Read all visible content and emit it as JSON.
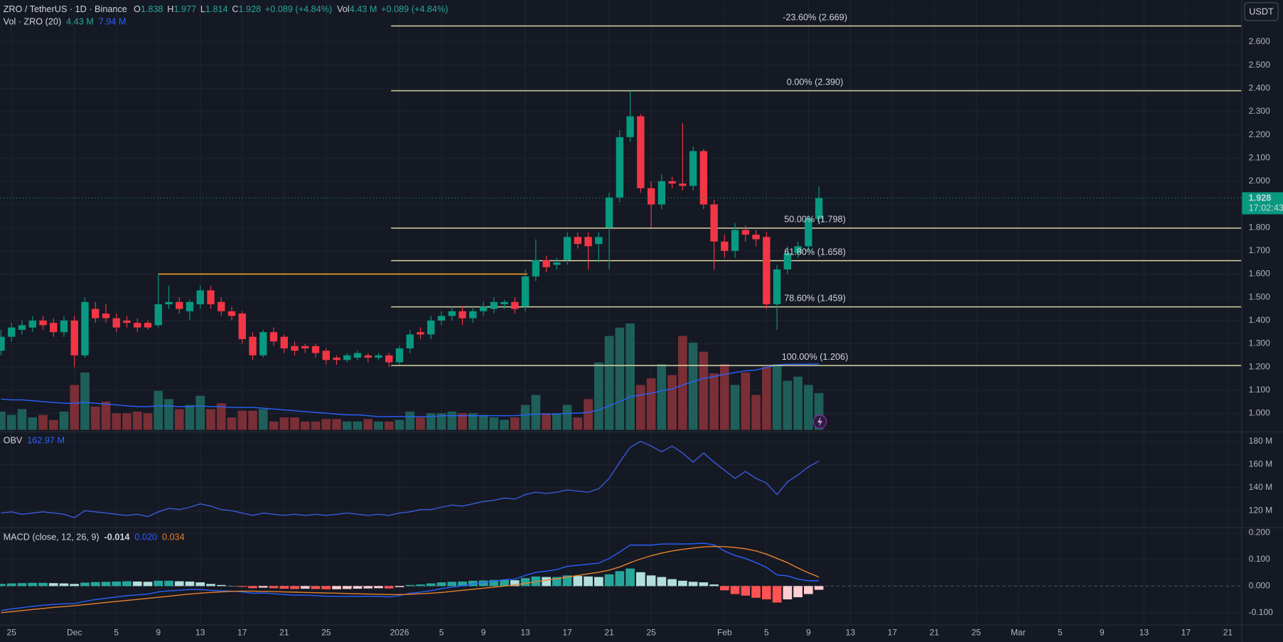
{
  "chart_data": {
    "type": "candlestick",
    "title": "ZRO / TetherUS · 1D · Binance",
    "header_keys": [
      "O",
      "H",
      "L",
      "C"
    ],
    "change": "+0.089 (+4.84%)",
    "vol_key": "Vol",
    "quote": "USDT",
    "countdown": "17:02:43",
    "up_color": "#089981",
    "down_color": "#f23645",
    "xlim": [
      -0.1,
      118.2
    ],
    "xticks": [
      {
        "value": 1,
        "label": "25"
      },
      {
        "value": 7,
        "label": "Dec"
      },
      {
        "value": 11,
        "label": "5"
      },
      {
        "value": 15,
        "label": "9"
      },
      {
        "value": 19,
        "label": "13"
      },
      {
        "value": 23,
        "label": "17"
      },
      {
        "value": 27,
        "label": "21"
      },
      {
        "value": 31,
        "label": "25"
      },
      {
        "value": 38,
        "label": "2026"
      },
      {
        "value": 42,
        "label": "5"
      },
      {
        "value": 46,
        "label": "9"
      },
      {
        "value": 50,
        "label": "13"
      },
      {
        "value": 54,
        "label": "17"
      },
      {
        "value": 58,
        "label": "21"
      },
      {
        "value": 62,
        "label": "25"
      },
      {
        "value": 69,
        "label": "Feb"
      },
      {
        "value": 73,
        "label": "5"
      },
      {
        "value": 77,
        "label": "9"
      },
      {
        "value": 81,
        "label": "13"
      },
      {
        "value": 85,
        "label": "17"
      },
      {
        "value": 89,
        "label": "21"
      },
      {
        "value": 93,
        "label": "25"
      },
      {
        "value": 97,
        "label": "Mar"
      },
      {
        "value": 101,
        "label": "5"
      },
      {
        "value": 105,
        "label": "9"
      },
      {
        "value": 109,
        "label": "13"
      },
      {
        "value": 113,
        "label": "17"
      },
      {
        "value": 117,
        "label": "21"
      }
    ],
    "ylim": [
      0.922,
      2.78
    ],
    "yticks": [
      {
        "value": 1.0,
        "label": "1.000"
      },
      {
        "value": 1.1,
        "label": "1.100"
      },
      {
        "value": 1.2,
        "label": "1.200"
      },
      {
        "value": 1.3,
        "label": "1.300"
      },
      {
        "value": 1.4,
        "label": "1.400"
      },
      {
        "value": 1.5,
        "label": "1.500"
      },
      {
        "value": 1.6,
        "label": "1.600"
      },
      {
        "value": 1.7,
        "label": "1.700"
      },
      {
        "value": 1.8,
        "label": "1.800"
      },
      {
        "value": 1.9,
        "label": "1.900"
      },
      {
        "value": 2.0,
        "label": "2.000"
      },
      {
        "value": 2.1,
        "label": "2.100"
      },
      {
        "value": 2.2,
        "label": "2.200"
      },
      {
        "value": 2.3,
        "label": "2.300"
      },
      {
        "value": 2.4,
        "label": "2.400"
      },
      {
        "value": 2.5,
        "label": "2.500"
      },
      {
        "value": 2.6,
        "label": "2.600"
      }
    ],
    "grid": true,
    "open": [
      1.27,
      1.33,
      1.36,
      1.37,
      1.4,
      1.39,
      1.35,
      1.4,
      1.25,
      1.45,
      1.43,
      1.41,
      1.4,
      1.39,
      1.39,
      1.38,
      1.47,
      1.48,
      1.44,
      1.47,
      1.53,
      1.48,
      1.44,
      1.43,
      1.33,
      1.25,
      1.35,
      1.33,
      1.29,
      1.29,
      1.29,
      1.27,
      1.24,
      1.23,
      1.24,
      1.25,
      1.24,
      1.25,
      1.22,
      1.28,
      1.35,
      1.34,
      1.4,
      1.42,
      1.44,
      1.41,
      1.44,
      1.45,
      1.47,
      1.48,
      1.46,
      1.59,
      1.66,
      1.64,
      1.66,
      1.76,
      1.76,
      1.73,
      1.8,
      1.93,
      2.19,
      2.28,
      1.97,
      1.9,
      2.0,
      1.99,
      1.98,
      2.13,
      1.9,
      1.74,
      1.7,
      1.79,
      1.77,
      1.76,
      1.47,
      1.62,
      1.69,
      1.72,
      1.838
    ],
    "high": [
      1.36,
      1.39,
      1.4,
      1.42,
      1.42,
      1.41,
      1.42,
      1.42,
      1.5,
      1.48,
      1.47,
      1.43,
      1.42,
      1.41,
      1.4,
      1.6,
      1.55,
      1.5,
      1.49,
      1.55,
      1.55,
      1.5,
      1.46,
      1.44,
      1.35,
      1.36,
      1.37,
      1.34,
      1.31,
      1.3,
      1.3,
      1.28,
      1.25,
      1.26,
      1.27,
      1.26,
      1.26,
      1.26,
      1.29,
      1.36,
      1.37,
      1.42,
      1.44,
      1.46,
      1.46,
      1.46,
      1.48,
      1.5,
      1.49,
      1.5,
      1.62,
      1.75,
      1.68,
      1.67,
      1.78,
      1.78,
      1.78,
      1.78,
      1.95,
      2.22,
      2.39,
      2.29,
      2.0,
      2.03,
      2.02,
      2.25,
      2.15,
      2.14,
      1.92,
      1.77,
      1.82,
      1.81,
      1.79,
      1.78,
      1.64,
      1.72,
      1.74,
      1.85,
      1.977
    ],
    "low": [
      1.25,
      1.31,
      1.34,
      1.35,
      1.36,
      1.33,
      1.33,
      1.2,
      1.24,
      1.39,
      1.39,
      1.35,
      1.37,
      1.35,
      1.36,
      1.37,
      1.45,
      1.43,
      1.4,
      1.45,
      1.45,
      1.42,
      1.4,
      1.3,
      1.23,
      1.24,
      1.29,
      1.26,
      1.25,
      1.26,
      1.24,
      1.21,
      1.21,
      1.22,
      1.23,
      1.22,
      1.23,
      1.2,
      1.21,
      1.26,
      1.32,
      1.32,
      1.38,
      1.4,
      1.38,
      1.39,
      1.42,
      1.43,
      1.45,
      1.43,
      1.44,
      1.57,
      1.61,
      1.62,
      1.64,
      1.71,
      1.62,
      1.65,
      1.62,
      1.91,
      2.17,
      1.95,
      1.8,
      1.88,
      1.97,
      1.96,
      1.96,
      1.88,
      1.62,
      1.67,
      1.67,
      1.74,
      1.72,
      1.45,
      1.36,
      1.6,
      1.67,
      1.7,
      1.814
    ],
    "close": [
      1.33,
      1.37,
      1.38,
      1.4,
      1.38,
      1.35,
      1.4,
      1.25,
      1.48,
      1.41,
      1.41,
      1.37,
      1.39,
      1.37,
      1.37,
      1.47,
      1.48,
      1.45,
      1.48,
      1.53,
      1.47,
      1.44,
      1.42,
      1.32,
      1.25,
      1.35,
      1.31,
      1.28,
      1.27,
      1.28,
      1.26,
      1.23,
      1.23,
      1.25,
      1.26,
      1.24,
      1.25,
      1.22,
      1.28,
      1.34,
      1.34,
      1.4,
      1.42,
      1.44,
      1.41,
      1.44,
      1.46,
      1.48,
      1.48,
      1.45,
      1.59,
      1.66,
      1.63,
      1.65,
      1.76,
      1.73,
      1.72,
      1.76,
      1.93,
      2.19,
      2.28,
      1.97,
      1.9,
      2.0,
      1.99,
      1.98,
      2.13,
      1.9,
      1.74,
      1.7,
      1.79,
      1.77,
      1.75,
      1.47,
      1.62,
      1.69,
      1.72,
      1.84,
      1.928
    ],
    "fib": {
      "x_start": 37.2,
      "color": "#d8d3a4",
      "levels": [
        {
          "label": "-23.60% (2.669)",
          "value": 2.669
        },
        {
          "label": "0.00% (2.390)",
          "value": 2.39
        },
        {
          "label": "50.00% (1.798)",
          "value": 1.798
        },
        {
          "label": "61.80% (1.658)",
          "value": 1.658
        },
        {
          "label": "78.60% (1.459)",
          "value": 1.459
        },
        {
          "label": "100.00% (1.206)",
          "value": 1.206
        }
      ]
    },
    "level_line": {
      "value": 1.6,
      "x": [
        15,
        50.2
      ],
      "color": "#e39a28"
    },
    "volume": {
      "name": "Vol · ZRO (20)",
      "label": "4.43 M",
      "ma_label": "7.94 M",
      "ylim": [
        0,
        51.7
      ],
      "up_color": "#1f5f59",
      "down_color": "#7a2e36",
      "ma_color": "#2962ff",
      "values": [
        2.2,
        1.8,
        2.5,
        1.5,
        1.8,
        1.2,
        2.2,
        5.4,
        6.9,
        2.8,
        3.4,
        2.0,
        2.0,
        2.2,
        2.0,
        4.7,
        3.7,
        2.5,
        3.0,
        4.1,
        2.5,
        3.2,
        1.5,
        2.3,
        2.3,
        2.5,
        1.0,
        1.5,
        1.5,
        1.0,
        1.0,
        1.3,
        1.3,
        1.0,
        1.0,
        1.3,
        1.0,
        1.0,
        1.2,
        2.2,
        1.5,
        2.0,
        2.0,
        2.2,
        2.0,
        2.0,
        1.8,
        1.5,
        1.2,
        1.5,
        3.0,
        4.2,
        2.0,
        2.0,
        3.0,
        1.5,
        3.7,
        8.1,
        11.3,
        12.3,
        12.8,
        5.4,
        6.2,
        7.9,
        6.6,
        11.3,
        10.5,
        9.4,
        6.8,
        7.9,
        5.4,
        6.9,
        4.2,
        7.6,
        7.9,
        5.9,
        6.4,
        5.4,
        4.43
      ],
      "ma": [
        3.7,
        3.6,
        3.6,
        3.5,
        3.4,
        3.3,
        3.2,
        3.2,
        3.3,
        3.2,
        3.1,
        3.0,
        2.9,
        2.8,
        2.8,
        2.9,
        2.9,
        2.8,
        2.8,
        2.9,
        2.8,
        2.8,
        2.7,
        2.7,
        2.7,
        2.6,
        2.5,
        2.4,
        2.3,
        2.2,
        2.1,
        2.0,
        1.9,
        1.8,
        1.8,
        1.7,
        1.6,
        1.6,
        1.6,
        1.6,
        1.6,
        1.6,
        1.7,
        1.7,
        1.7,
        1.7,
        1.7,
        1.7,
        1.7,
        1.7,
        1.8,
        1.9,
        1.9,
        1.9,
        2.0,
        2.0,
        2.1,
        2.4,
        2.9,
        3.4,
        4.0,
        4.2,
        4.4,
        4.7,
        4.9,
        5.4,
        5.8,
        6.2,
        6.4,
        6.7,
        6.9,
        7.1,
        7.2,
        7.5,
        7.8,
        7.9,
        7.9,
        7.9,
        7.94
      ]
    },
    "obv": {
      "name": "OBV",
      "label": "162.97 M",
      "color": "#3a5bd9",
      "ylim": [
        105.7,
        187.9
      ],
      "yticks": [
        {
          "value": 120,
          "label": "120 M"
        },
        {
          "value": 140,
          "label": "140 M"
        },
        {
          "value": 160,
          "label": "160 M"
        },
        {
          "value": 180,
          "label": "180 M"
        }
      ],
      "values": [
        118,
        119,
        117,
        118,
        119,
        118,
        117,
        114,
        120,
        119,
        118,
        117,
        116,
        117,
        115,
        119,
        122,
        121,
        123,
        126,
        124,
        121,
        120,
        118,
        116,
        118,
        117,
        116,
        117,
        116,
        117,
        116,
        117,
        118,
        117,
        116,
        117,
        116,
        118,
        119,
        121,
        121,
        123,
        125,
        124,
        126,
        128,
        129,
        131,
        130,
        134,
        136,
        135,
        136,
        138,
        137,
        136,
        139,
        148,
        162,
        175,
        180,
        176,
        171,
        176,
        170,
        162,
        170,
        162,
        155,
        148,
        154,
        148,
        144,
        134,
        145,
        151,
        158,
        162.97
      ]
    },
    "macd": {
      "name": "MACD (close, 12, 26, 9)",
      "hist_label": "-0.014",
      "macd_label": "0.020",
      "signal_label": "0.034",
      "macd_color": "#2962ff",
      "signal_color": "#e8822b",
      "hist_colors": [
        "#26a69a",
        "#b2dfdb",
        "#ffcdd2",
        "#ff5252"
      ],
      "ylim": [
        -0.145,
        0.218
      ],
      "yticks": [
        {
          "value": -0.1,
          "label": "-0.100"
        },
        {
          "value": 0,
          "label": "0.000"
        },
        {
          "value": 0.1,
          "label": "0.100"
        },
        {
          "value": 0.2,
          "label": "0.200"
        }
      ],
      "macd": [
        -0.092,
        -0.086,
        -0.081,
        -0.076,
        -0.072,
        -0.069,
        -0.067,
        -0.066,
        -0.057,
        -0.051,
        -0.046,
        -0.041,
        -0.036,
        -0.033,
        -0.03,
        -0.022,
        -0.018,
        -0.016,
        -0.013,
        -0.013,
        -0.016,
        -0.018,
        -0.019,
        -0.022,
        -0.027,
        -0.026,
        -0.029,
        -0.032,
        -0.034,
        -0.034,
        -0.036,
        -0.038,
        -0.039,
        -0.039,
        -0.039,
        -0.039,
        -0.039,
        -0.041,
        -0.036,
        -0.027,
        -0.023,
        -0.017,
        -0.01,
        -0.004,
        0.001,
        0.008,
        0.013,
        0.019,
        0.024,
        0.026,
        0.04,
        0.052,
        0.056,
        0.062,
        0.074,
        0.078,
        0.082,
        0.086,
        0.104,
        0.128,
        0.154,
        0.154,
        0.154,
        0.158,
        0.158,
        0.158,
        0.159,
        0.161,
        0.155,
        0.132,
        0.115,
        0.104,
        0.088,
        0.07,
        0.042,
        0.038,
        0.026,
        0.02,
        0.02
      ],
      "signal": [
        -0.1,
        -0.096,
        -0.092,
        -0.088,
        -0.084,
        -0.08,
        -0.077,
        -0.074,
        -0.07,
        -0.066,
        -0.062,
        -0.058,
        -0.054,
        -0.05,
        -0.046,
        -0.042,
        -0.038,
        -0.034,
        -0.03,
        -0.027,
        -0.024,
        -0.022,
        -0.02,
        -0.019,
        -0.019,
        -0.02,
        -0.021,
        -0.022,
        -0.023,
        -0.024,
        -0.025,
        -0.026,
        -0.027,
        -0.028,
        -0.029,
        -0.03,
        -0.031,
        -0.032,
        -0.032,
        -0.031,
        -0.029,
        -0.027,
        -0.024,
        -0.02,
        -0.016,
        -0.012,
        -0.008,
        -0.004,
        0.0,
        0.004,
        0.01,
        0.016,
        0.022,
        0.028,
        0.034,
        0.04,
        0.046,
        0.052,
        0.06,
        0.072,
        0.088,
        0.102,
        0.114,
        0.124,
        0.132,
        0.138,
        0.143,
        0.147,
        0.149,
        0.148,
        0.145,
        0.14,
        0.132,
        0.12,
        0.104,
        0.088,
        0.068,
        0.05,
        0.034
      ],
      "hist": [
        0.008,
        0.01,
        0.011,
        0.012,
        0.012,
        0.011,
        0.01,
        0.008,
        0.013,
        0.015,
        0.016,
        0.017,
        0.018,
        0.017,
        0.016,
        0.02,
        0.02,
        0.018,
        0.017,
        0.014,
        0.008,
        0.004,
        0.001,
        -0.003,
        -0.008,
        -0.006,
        -0.008,
        -0.01,
        -0.011,
        -0.01,
        -0.011,
        -0.012,
        -0.012,
        -0.011,
        -0.01,
        -0.009,
        -0.008,
        -0.009,
        -0.004,
        0.004,
        0.006,
        0.01,
        0.014,
        0.016,
        0.017,
        0.02,
        0.021,
        0.023,
        0.024,
        0.022,
        0.03,
        0.036,
        0.034,
        0.034,
        0.04,
        0.038,
        0.036,
        0.034,
        0.044,
        0.056,
        0.066,
        0.052,
        0.04,
        0.034,
        0.026,
        0.02,
        0.016,
        0.014,
        0.006,
        -0.016,
        -0.03,
        -0.036,
        -0.044,
        -0.05,
        -0.062,
        -0.05,
        -0.042,
        -0.03,
        -0.014
      ]
    }
  }
}
